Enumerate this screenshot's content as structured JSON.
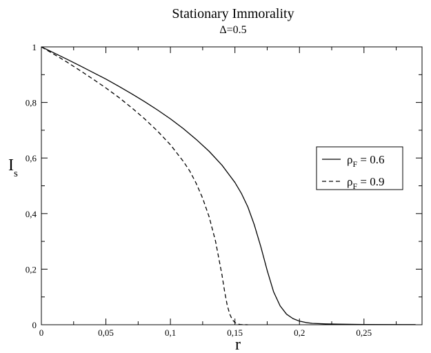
{
  "chart_data": {
    "type": "line",
    "title": "Stationary Immorality",
    "subtitle": "Δ=0.5",
    "xlabel": "r",
    "ylabel": {
      "main": "I",
      "sub": "s"
    },
    "xlim": [
      0,
      0.295
    ],
    "ylim": [
      0,
      1
    ],
    "x_ticks": [
      0,
      0.05,
      0.1,
      0.15,
      0.2,
      0.25
    ],
    "x_tick_labels": [
      "0",
      "0,05",
      "0,1",
      "0,15",
      "0,2",
      "0,25"
    ],
    "y_ticks": [
      0,
      0.2,
      0.4,
      0.6,
      0.8,
      1
    ],
    "y_tick_labels": [
      "0",
      "0,2",
      "0,4",
      "0,6",
      "0,8",
      "1"
    ],
    "grid": false,
    "legend_position": "right",
    "series": [
      {
        "name": "ρ_F = 0.6",
        "legend": {
          "prefix": "ρ",
          "sub": "F",
          "suffix": " = 0.6"
        },
        "color": "#000000",
        "dash": "solid",
        "x": [
          0,
          0.01,
          0.02,
          0.03,
          0.04,
          0.05,
          0.06,
          0.07,
          0.08,
          0.09,
          0.1,
          0.11,
          0.12,
          0.13,
          0.14,
          0.15,
          0.155,
          0.16,
          0.165,
          0.17,
          0.175,
          0.18,
          0.185,
          0.19,
          0.195,
          0.2,
          0.205,
          0.21,
          0.22,
          0.23,
          0.25,
          0.28,
          0.29
        ],
        "y": [
          1.0,
          0.978,
          0.955,
          0.932,
          0.908,
          0.884,
          0.858,
          0.831,
          0.803,
          0.773,
          0.741,
          0.706,
          0.667,
          0.624,
          0.574,
          0.512,
          0.473,
          0.424,
          0.36,
          0.282,
          0.195,
          0.118,
          0.068,
          0.038,
          0.022,
          0.013,
          0.008,
          0.005,
          0.003,
          0.002,
          0.001,
          0.0005,
          0.0005
        ]
      },
      {
        "name": "ρ_F = 0.9",
        "legend": {
          "prefix": "ρ",
          "sub": "F",
          "suffix": " = 0.9"
        },
        "color": "#000000",
        "dash": "dashed",
        "x": [
          0,
          0.01,
          0.02,
          0.03,
          0.04,
          0.05,
          0.06,
          0.07,
          0.08,
          0.09,
          0.1,
          0.11,
          0.115,
          0.12,
          0.125,
          0.13,
          0.135,
          0.14,
          0.142,
          0.144,
          0.146,
          0.148,
          0.15,
          0.152,
          0.154,
          0.156,
          0.16
        ],
        "y": [
          1.0,
          0.973,
          0.945,
          0.915,
          0.884,
          0.852,
          0.818,
          0.781,
          0.741,
          0.697,
          0.648,
          0.588,
          0.553,
          0.509,
          0.455,
          0.388,
          0.3,
          0.178,
          0.12,
          0.07,
          0.038,
          0.018,
          0.008,
          0.003,
          0.001,
          0.0003,
          0.0
        ]
      }
    ]
  }
}
